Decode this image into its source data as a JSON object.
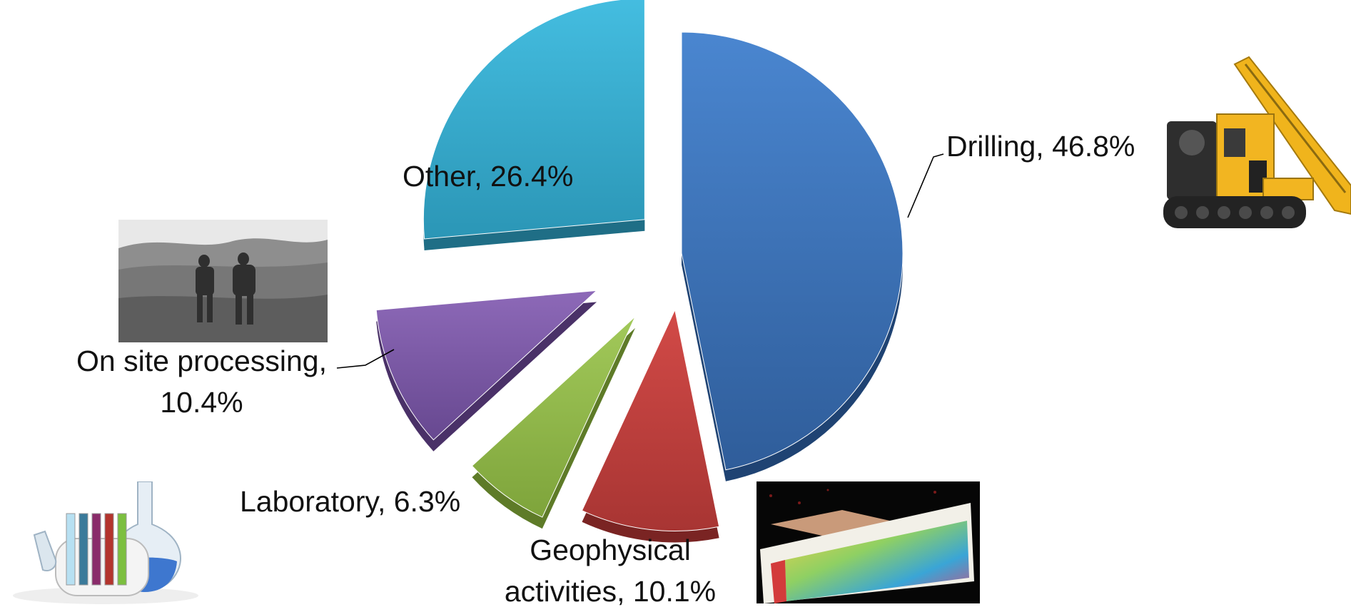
{
  "chart_data": {
    "type": "pie",
    "title": "",
    "exploded": true,
    "style": "3d",
    "series": [
      {
        "values": [
          46.8,
          10.1,
          6.3,
          10.4,
          26.4
        ],
        "categories": [
          "Drilling",
          "Geophysical activities",
          "Laboratory",
          "On site processing",
          "Other"
        ]
      }
    ],
    "slices": [
      {
        "label": "Drilling",
        "value": 46.8,
        "color": "#3b74bd",
        "label_text": "Drilling, 46.8%"
      },
      {
        "label": "Geophysical activities",
        "value": 10.1,
        "color": "#c0403e",
        "label_line1": "Geophysical",
        "label_line2": "activities, 10.1%"
      },
      {
        "label": "Laboratory",
        "value": 6.3,
        "color": "#92b94a",
        "label_text": "Laboratory, 6.3%"
      },
      {
        "label": "On site processing",
        "value": 10.4,
        "color": "#7d5aa6",
        "label_line1": "On site processing,",
        "label_line2": "10.4%"
      },
      {
        "label": "Other",
        "value": 26.4,
        "color": "#3bb0d2",
        "label_text": "Other, 26.4%"
      }
    ]
  },
  "illustrations": {
    "drilling": "drilling-rig-photo",
    "field": "field-workers-photo",
    "laboratory": "laboratory-glassware-photo",
    "geophysics": "geophysical-section-photo"
  }
}
